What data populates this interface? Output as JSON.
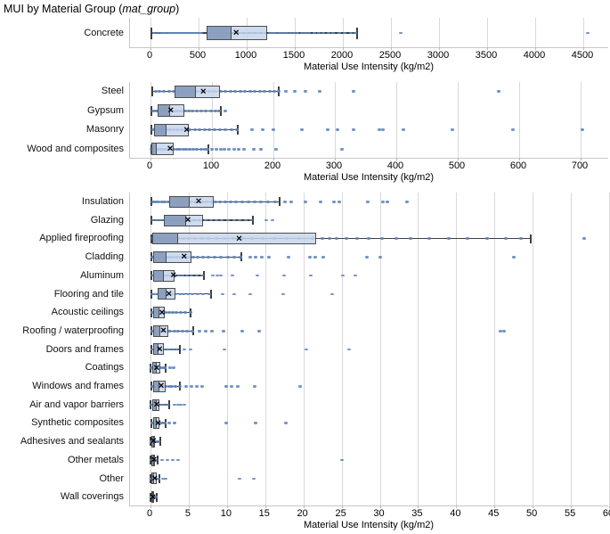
{
  "title": {
    "prefix": "MUI by Material Group (",
    "var": "mat_group",
    "suffix": ")"
  },
  "colors": {
    "box_upper_fill": "#c6d5ec",
    "box_lower_fill": "#879bbc",
    "box_border": "#4c4c4c",
    "whisker": "#3f3f3f",
    "point": "#5e86bd",
    "gridline": "#d9d9d9",
    "axis_line": "#c6c6c6",
    "mean_marker": "#000000"
  },
  "chart_data": [
    {
      "type": "box",
      "orientation": "horizontal",
      "xlabel": "Material Use Intensity (kg/m2)",
      "xlim": [
        0,
        4500
      ],
      "xticks": [
        0,
        500,
        1000,
        1500,
        2000,
        2500,
        3000,
        3500,
        4000,
        4500
      ],
      "grid": true,
      "categories": [
        "Concrete"
      ],
      "stats": [
        {
          "label": "Concrete",
          "whislo": 10,
          "q1": 580,
          "med": 830,
          "mean": 890,
          "q3": 1210,
          "whishi": 2150,
          "outliers": [
            2600,
            4550
          ],
          "points": [
            40,
            70,
            110,
            140,
            160,
            185,
            200,
            215,
            230,
            250,
            265,
            280,
            295,
            310,
            330,
            345,
            360,
            380,
            395,
            410,
            425,
            440,
            455,
            470,
            490,
            510,
            530,
            620,
            660,
            700,
            760,
            820,
            880,
            940,
            1000,
            1060,
            1120,
            1180,
            1240,
            1270,
            1300,
            1330,
            1360,
            1390,
            1420,
            1450,
            1490,
            1530,
            1570,
            1610,
            1650,
            1700,
            1750,
            1800,
            1850,
            1900,
            1960,
            2020,
            2080,
            2130
          ]
        }
      ]
    },
    {
      "type": "box",
      "orientation": "horizontal",
      "xlabel": "Material Use Intensity (kg/m2)",
      "xlim": [
        0,
        700
      ],
      "xticks": [
        0,
        100,
        200,
        300,
        400,
        500,
        600,
        700
      ],
      "grid": true,
      "categories": [
        "Steel",
        "Gypsum",
        "Masonry",
        "Wood and composites"
      ],
      "stats": [
        {
          "label": "Steel",
          "whislo": 3,
          "q1": 39,
          "med": 72,
          "mean": 86,
          "q3": 113,
          "whishi": 209,
          "outliers": [
            220,
            235,
            252,
            275,
            330,
            567
          ],
          "points": [
            8,
            15,
            22,
            30,
            38,
            45,
            52,
            60,
            68,
            76,
            85,
            95,
            105,
            115,
            122,
            130,
            138,
            146,
            154,
            162,
            170,
            178,
            186,
            194,
            202,
            208
          ]
        },
        {
          "label": "Gypsum",
          "whislo": 2,
          "q1": 11,
          "med": 31,
          "mean": 33,
          "q3": 55,
          "whishi": 114,
          "outliers": [
            122
          ],
          "points": [
            4,
            8,
            12,
            16,
            20,
            25,
            30,
            35,
            40,
            45,
            50,
            56,
            62,
            68,
            75,
            82,
            90,
            98,
            106,
            112
          ]
        },
        {
          "label": "Masonry",
          "whislo": 2,
          "q1": 6,
          "med": 24,
          "mean": 59,
          "q3": 63,
          "whishi": 142,
          "outliers": [
            165,
            183,
            200,
            247,
            288,
            305,
            330,
            372,
            378,
            412,
            492,
            590,
            703
          ],
          "points": [
            4,
            8,
            12,
            17,
            22,
            27,
            32,
            38,
            44,
            50,
            57,
            64,
            72,
            80,
            88,
            96,
            104,
            113,
            122,
            132,
            140
          ]
        },
        {
          "label": "Wood and composites",
          "whislo": 1,
          "q1": 2,
          "med": 9,
          "mean": 32,
          "q3": 38,
          "whishi": 94,
          "outliers": [
            100,
            107,
            114,
            121,
            128,
            136,
            144,
            152,
            168,
            180,
            205,
            312
          ],
          "points": [
            2,
            4,
            6,
            9,
            12,
            15,
            18,
            22,
            26,
            30,
            34,
            38,
            43,
            48,
            53,
            58,
            64,
            70,
            76,
            82,
            88,
            93
          ]
        }
      ]
    },
    {
      "type": "box",
      "orientation": "horizontal",
      "xlabel": "Material Use Intensity (kg/m2)",
      "xlim": [
        0,
        60
      ],
      "xticks": [
        0,
        5,
        10,
        15,
        20,
        25,
        30,
        35,
        40,
        45,
        50,
        55,
        60
      ],
      "grid": true,
      "categories": [
        "Insulation",
        "Glazing",
        "Applied fireproofing",
        "Cladding",
        "Aluminum",
        "Flooring and tile",
        "Acoustic ceilings",
        "Roofing / waterproofing",
        "Doors and frames",
        "Coatings",
        "Windows and frames",
        "Air and vapor barriers",
        "Synthetic composites",
        "Adhesives and sealants",
        "Other metals",
        "Other",
        "Wall coverings"
      ],
      "stats": [
        {
          "label": "Insulation",
          "whislo": 0.15,
          "q1": 2.5,
          "med": 5.0,
          "mean": 6.3,
          "q3": 8.3,
          "whishi": 16.9,
          "outliers": [
            17.6,
            18.4,
            20.3,
            22.2,
            24.0,
            24.7,
            28.4,
            30.4,
            31.0,
            33.5
          ],
          "points": [
            0.3,
            0.7,
            1.1,
            1.5,
            1.9,
            2.3,
            2.8,
            3.3,
            3.8,
            4.3,
            4.8,
            5.3,
            5.8,
            6.3,
            6.8,
            7.3,
            7.9,
            8.5,
            9.1,
            9.8,
            10.5,
            11.2,
            12.0,
            12.8,
            13.6,
            14.5,
            15.4,
            16.3
          ]
        },
        {
          "label": "Glazing",
          "whislo": 0.15,
          "q1": 1.8,
          "med": 4.5,
          "mean": 4.9,
          "q3": 6.9,
          "whishi": 13.4,
          "outliers": [
            15.2,
            16.0
          ],
          "points": [
            0.3,
            0.8,
            1.3,
            1.8,
            2.4,
            3.0,
            3.6,
            4.2,
            4.8,
            5.4,
            6.0,
            6.6,
            7.2,
            7.9,
            8.6,
            9.3,
            10.1,
            10.9,
            11.7,
            12.5,
            13.2
          ]
        },
        {
          "label": "Applied fireproofing",
          "whislo": 0.1,
          "q1": 0.2,
          "med": 3.5,
          "mean": 11.6,
          "q3": 21.7,
          "whishi": 49.8,
          "outliers": [
            56.7
          ],
          "points": [
            0.4,
            0.9,
            1.4,
            1.9,
            2.4,
            3.0,
            3.6,
            4.3,
            5.0,
            5.8,
            6.7,
            7.6,
            8.6,
            9.7,
            10.8,
            12.0,
            13.3,
            14.7,
            16.2,
            17.8,
            19.5,
            21.2,
            22.5,
            23.4,
            24.3,
            25.6,
            27.0,
            28.6,
            30.3,
            32.1,
            34.0,
            36.5,
            39.0,
            41.5,
            44.0,
            46.5,
            48.5
          ]
        },
        {
          "label": "Cladding",
          "whislo": 0.1,
          "q1": 0.4,
          "med": 2.0,
          "mean": 4.4,
          "q3": 5.4,
          "whishi": 11.9,
          "outliers": [
            13.0,
            13.8,
            14.6,
            15.5,
            18.0,
            20.9,
            21.5,
            22.6,
            28.3,
            30.1,
            47.5
          ],
          "points": [
            0.2,
            0.5,
            0.8,
            1.1,
            1.4,
            1.8,
            2.2,
            2.6,
            3.0,
            3.5,
            4.0,
            4.5,
            5.0,
            5.6,
            6.2,
            6.9,
            7.6,
            8.4,
            9.2,
            10.1,
            11.0,
            11.8
          ]
        },
        {
          "label": "Aluminum",
          "whislo": 0.1,
          "q1": 0.4,
          "med": 1.6,
          "mean": 3.0,
          "q3": 3.1,
          "whishi": 7.0,
          "outliers": [
            8.1,
            8.7,
            9.2,
            10.7,
            14.0,
            17.5,
            21.0,
            25.2,
            26.8
          ],
          "points": [
            0.2,
            0.5,
            0.8,
            1.1,
            1.4,
            1.7,
            2.0,
            2.4,
            2.8,
            3.2,
            3.7,
            4.2,
            4.8,
            5.4,
            6.1,
            6.8
          ]
        },
        {
          "label": "Flooring and tile",
          "whislo": 0.1,
          "q1": 0.9,
          "med": 2.0,
          "mean": 2.4,
          "q3": 3.3,
          "whishi": 7.9,
          "outliers": [
            9.4,
            10.9,
            13.0,
            17.4,
            23.8
          ],
          "points": [
            0.2,
            0.5,
            0.8,
            1.1,
            1.4,
            1.7,
            2.1,
            2.5,
            2.9,
            3.3,
            3.8,
            4.3,
            4.9,
            5.5,
            6.2,
            6.9,
            7.7
          ]
        },
        {
          "label": "Acoustic ceilings",
          "whislo": 0.1,
          "q1": 0.3,
          "med": 1.0,
          "mean": 1.5,
          "q3": 1.9,
          "whishi": 5.3,
          "outliers": [],
          "points": [
            0.2,
            0.4,
            0.7,
            1.0,
            1.3,
            1.6,
            2.0,
            2.4,
            2.9,
            3.4,
            4.0,
            4.6,
            5.2
          ]
        },
        {
          "label": "Roofing / waterproofing",
          "whislo": 0.1,
          "q1": 0.4,
          "med": 1.2,
          "mean": 1.7,
          "q3": 2.3,
          "whishi": 5.6,
          "outliers": [
            6.4,
            7.2,
            8.0,
            9.5,
            12.0,
            14.2,
            45.8,
            46.3
          ],
          "points": [
            0.2,
            0.5,
            0.8,
            1.1,
            1.4,
            1.8,
            2.2,
            2.6,
            3.1,
            3.6,
            4.2,
            4.8,
            5.5
          ]
        },
        {
          "label": "Doors and frames",
          "whislo": 0.1,
          "q1": 0.3,
          "med": 0.9,
          "mean": 1.2,
          "q3": 1.8,
          "whishi": 3.8,
          "outliers": [
            4.4,
            5.3,
            9.7,
            20.4,
            26.0
          ],
          "points": [
            0.2,
            0.4,
            0.6,
            0.9,
            1.2,
            1.5,
            1.8,
            2.2,
            2.6,
            3.0,
            3.5
          ]
        },
        {
          "label": "Coatings",
          "whislo": 0.05,
          "q1": 0.2,
          "med": 0.7,
          "mean": 0.8,
          "q3": 1.3,
          "whishi": 2.0,
          "outliers": [
            2.6,
            3.0
          ],
          "points": [
            0.1,
            0.3,
            0.5,
            0.7,
            0.9,
            1.1,
            1.4,
            1.7,
            1.9
          ]
        },
        {
          "label": "Windows and frames",
          "whislo": 0.1,
          "q1": 0.3,
          "med": 1.0,
          "mean": 1.4,
          "q3": 2.0,
          "whishi": 3.9,
          "outliers": [
            4.7,
            5.4,
            6.1,
            6.8,
            9.9,
            10.6,
            11.4,
            13.6,
            19.6
          ],
          "points": [
            0.2,
            0.4,
            0.7,
            1.0,
            1.3,
            1.6,
            2.0,
            2.4,
            2.8,
            3.3,
            3.8
          ]
        },
        {
          "label": "Air and vapor barriers",
          "whislo": 0.05,
          "q1": 0.2,
          "med": 0.7,
          "mean": 0.8,
          "q3": 1.2,
          "whishi": 2.5,
          "outliers": [
            3.2,
            3.6,
            4.0,
            4.4
          ],
          "points": [
            0.1,
            0.3,
            0.5,
            0.8,
            1.1,
            1.4,
            1.8,
            2.2
          ]
        },
        {
          "label": "Synthetic composites",
          "whislo": 0.1,
          "q1": 0.3,
          "med": 0.7,
          "mean": 1.0,
          "q3": 1.2,
          "whishi": 2.0,
          "outliers": [
            2.5,
            3.2,
            9.9,
            13.7,
            17.7
          ],
          "points": [
            0.2,
            0.4,
            0.6,
            0.9,
            1.2,
            1.5,
            1.9
          ]
        },
        {
          "label": "Adhesives and sealants",
          "whislo": 0.05,
          "q1": 0.1,
          "med": 0.3,
          "mean": 0.4,
          "q3": 0.6,
          "whishi": 1.3,
          "outliers": [],
          "points": [
            0.1,
            0.25,
            0.4,
            0.6,
            0.85,
            1.1
          ]
        },
        {
          "label": "Other metals",
          "whislo": 0.05,
          "q1": 0.15,
          "med": 0.35,
          "mean": 0.45,
          "q3": 0.6,
          "whishi": 0.9,
          "outliers": [
            1.5,
            2.2,
            2.9,
            3.6,
            25.1
          ],
          "points": [
            0.1,
            0.3,
            0.5,
            0.7
          ]
        },
        {
          "label": "Other",
          "whislo": 0.05,
          "q1": 0.15,
          "med": 0.4,
          "mean": 0.55,
          "q3": 0.8,
          "whishi": 1.2,
          "outliers": [
            1.6,
            2.0,
            11.7,
            13.5
          ],
          "points": [
            0.1,
            0.3,
            0.5,
            0.7,
            0.9,
            1.1
          ]
        },
        {
          "label": "Wall coverings",
          "whislo": 0.03,
          "q1": 0.1,
          "med": 0.25,
          "mean": 0.33,
          "q3": 0.5,
          "whishi": 0.85,
          "outliers": [],
          "points": [
            0.1,
            0.2,
            0.35,
            0.5,
            0.7
          ]
        }
      ]
    }
  ]
}
